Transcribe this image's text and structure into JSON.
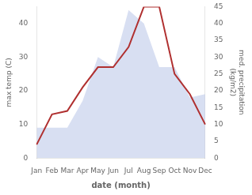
{
  "chart_data": {
    "type": "line",
    "categories": [
      "Jan",
      "Feb",
      "Mar",
      "Apr",
      "May",
      "Jun",
      "Jul",
      "Aug",
      "Sep",
      "Oct",
      "Nov",
      "Dec"
    ],
    "series": [
      {
        "type": "area",
        "axis": "y2",
        "color": "#b8c4e8",
        "values": [
          9,
          9,
          9,
          17,
          30,
          27,
          44,
          40,
          27,
          27,
          18,
          19
        ]
      },
      {
        "type": "line",
        "color": "#b03030",
        "values": [
          4,
          13,
          14,
          21,
          27,
          27,
          33,
          45,
          45,
          25,
          19,
          10
        ]
      }
    ],
    "xlabel": "date (month)",
    "ylabel": "max temp (C)",
    "y2label": "med. precipitation\n(kg/m2)",
    "ylim": [
      0,
      45
    ],
    "yticks": [
      0,
      10,
      20,
      30,
      40
    ],
    "y2lim": [
      0,
      45
    ],
    "y2ticks": [
      0,
      5,
      10,
      15,
      20,
      25,
      30,
      35,
      40,
      45
    ],
    "grid": false
  }
}
